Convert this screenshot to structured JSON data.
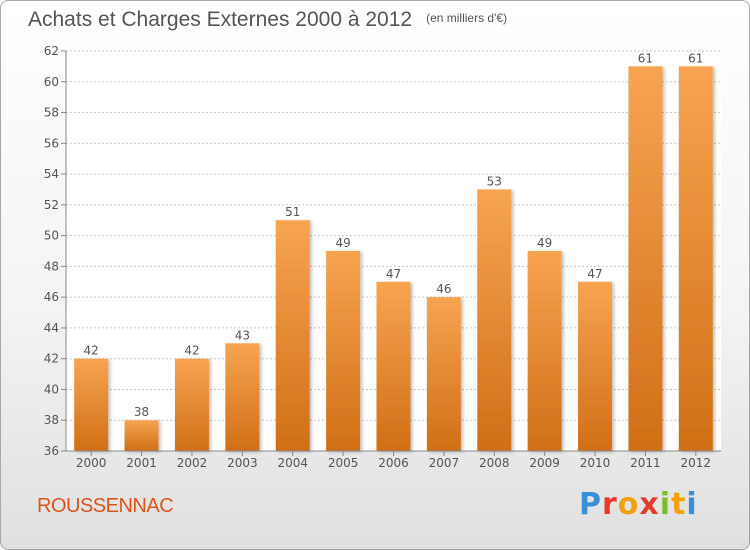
{
  "header": {
    "title": "Achats et Charges Externes 2000 à 2012",
    "unit": "(en milliers d'€)"
  },
  "footer": {
    "commune": "ROUSSENNAC",
    "logo_letters": [
      "P",
      "r",
      "o",
      "x",
      "i",
      "t",
      "i"
    ]
  },
  "colors": {
    "bar_light": "#f7a451",
    "bar_dark": "#d06f16",
    "commune": "#d9561b"
  },
  "chart_data": {
    "type": "bar",
    "title": "Achats et Charges Externes 2000 à 2012",
    "subtitle": "(en milliers d'€)",
    "xlabel": "",
    "ylabel": "",
    "categories": [
      "2000",
      "2001",
      "2002",
      "2003",
      "2004",
      "2005",
      "2006",
      "2007",
      "2008",
      "2009",
      "2010",
      "2011",
      "2012"
    ],
    "values": [
      42,
      38,
      42,
      43,
      51,
      49,
      47,
      46,
      53,
      49,
      47,
      61,
      61
    ],
    "data_labels": [
      "42",
      "38",
      "42",
      "43",
      "51",
      "49",
      "47",
      "46",
      "53",
      "49",
      "47",
      "61",
      "61"
    ],
    "ylim": [
      36,
      62
    ],
    "yticks": [
      "36",
      "38",
      "40",
      "42",
      "44",
      "46",
      "48",
      "50",
      "52",
      "54",
      "56",
      "58",
      "60",
      "62"
    ],
    "grid": true,
    "legend": "none"
  }
}
